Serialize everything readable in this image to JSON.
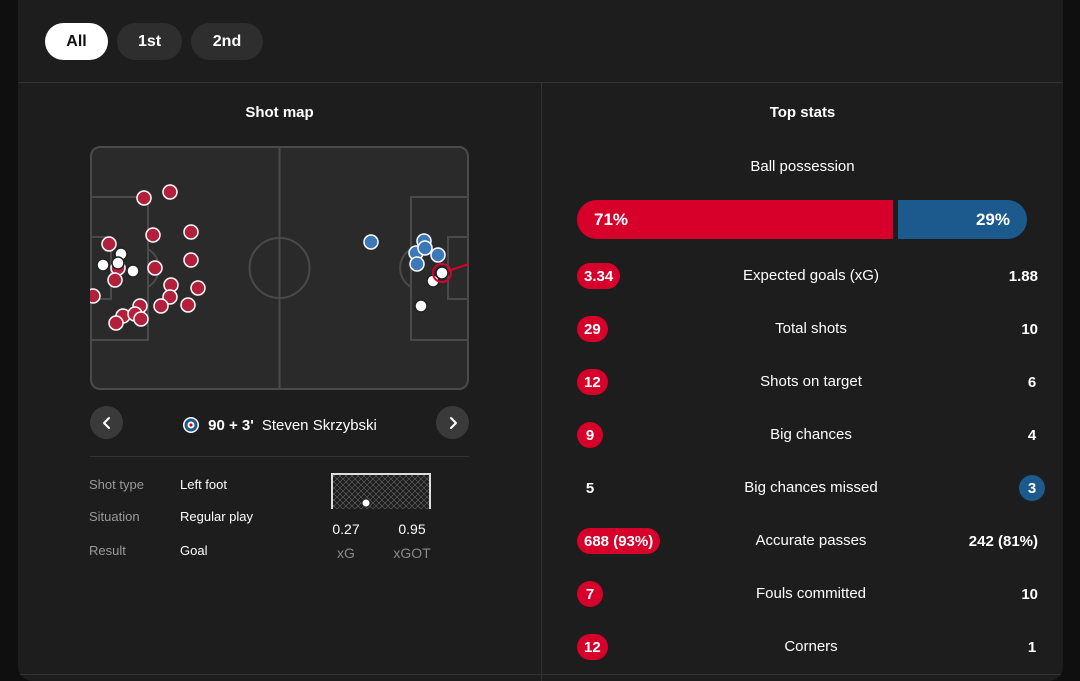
{
  "tabs": [
    {
      "label": "All",
      "active": true
    },
    {
      "label": "1st",
      "active": false
    },
    {
      "label": "2nd",
      "active": false
    }
  ],
  "shot_map": {
    "title": "Shot map",
    "current_shot": {
      "time": "90 + 3'",
      "player": "Steven Skrzybski",
      "details": [
        {
          "label": "Shot type",
          "value": "Left foot"
        },
        {
          "label": "Situation",
          "value": "Regular play"
        },
        {
          "label": "Result",
          "value": "Goal"
        }
      ],
      "xg": "0.27",
      "xg_label": "xG",
      "xgot": "0.95",
      "xgot_label": "xGOT"
    }
  },
  "top_stats": {
    "title": "Top stats",
    "possession": {
      "label": "Ball possession",
      "home": "71%",
      "away": "29%",
      "home_share": 0.71
    },
    "rows": [
      {
        "label": "Expected goals (xG)",
        "home": "3.34",
        "away": "1.88",
        "highlight": "home"
      },
      {
        "label": "Total shots",
        "home": "29",
        "away": "10",
        "highlight": "home"
      },
      {
        "label": "Shots on target",
        "home": "12",
        "away": "6",
        "highlight": "home"
      },
      {
        "label": "Big chances",
        "home": "9",
        "away": "4",
        "highlight": "home"
      },
      {
        "label": "Big chances missed",
        "home": "5",
        "away": "3",
        "highlight": "away"
      },
      {
        "label": "Accurate passes",
        "home": "688 (93%)",
        "away": "242 (81%)",
        "highlight": "home"
      },
      {
        "label": "Fouls committed",
        "home": "7",
        "away": "10",
        "highlight": "home"
      },
      {
        "label": "Corners",
        "home": "12",
        "away": "1",
        "highlight": "home"
      }
    ]
  },
  "colors": {
    "home": "#d7002a",
    "away": "#1c5a8e",
    "background": "#1d1d1d"
  }
}
